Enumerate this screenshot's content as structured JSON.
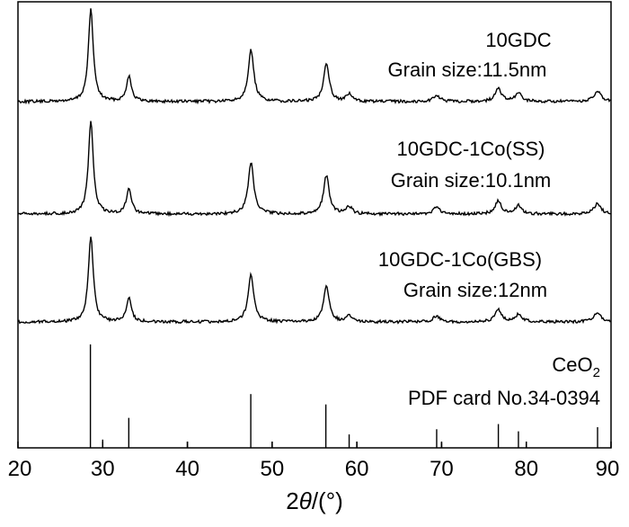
{
  "chart_data": {
    "type": "line",
    "title": "",
    "xlabel_prefix": "2",
    "xlabel_symbol": "θ",
    "xlabel_suffix": "/(°)",
    "ylabel": "",
    "xlim": [
      20,
      90
    ],
    "xticks": [
      20,
      30,
      40,
      50,
      60,
      70,
      80,
      90
    ],
    "y_axis_ticks": false,
    "peaks": [
      {
        "two_theta": 28.6,
        "height": 1.0,
        "width": 0.35
      },
      {
        "two_theta": 33.1,
        "height": 0.28,
        "width": 0.35
      },
      {
        "two_theta": 47.5,
        "height": 0.56,
        "width": 0.4
      },
      {
        "two_theta": 56.4,
        "height": 0.42,
        "width": 0.4
      },
      {
        "two_theta": 59.1,
        "height": 0.08,
        "width": 0.4
      },
      {
        "two_theta": 69.4,
        "height": 0.07,
        "width": 0.45
      },
      {
        "two_theta": 76.7,
        "height": 0.14,
        "width": 0.45
      },
      {
        "two_theta": 79.1,
        "height": 0.09,
        "width": 0.45
      },
      {
        "two_theta": 88.4,
        "height": 0.11,
        "width": 0.5
      }
    ],
    "series": [
      {
        "name": "10GDC",
        "grain_label": "Grain size:11.5nm",
        "grain_size_nm": 11.5
      },
      {
        "name": "10GDC-1Co(SS)",
        "grain_label": "Grain size:10.1nm",
        "grain_size_nm": 10.1
      },
      {
        "name": "10GDC-1Co(GBS)",
        "grain_label": "Grain size:12nm",
        "grain_size_nm": 12
      }
    ],
    "reference": {
      "compound_base": "CeO",
      "compound_subscript": "2",
      "card_label": "PDF card No.34-0394",
      "lines": [
        {
          "two_theta": 28.55,
          "intensity": 100
        },
        {
          "two_theta": 30.0,
          "intensity": 8
        },
        {
          "two_theta": 33.08,
          "intensity": 29
        },
        {
          "two_theta": 40.0,
          "intensity": 6
        },
        {
          "two_theta": 47.48,
          "intensity": 52
        },
        {
          "two_theta": 50.0,
          "intensity": 6
        },
        {
          "two_theta": 56.34,
          "intensity": 42
        },
        {
          "two_theta": 59.09,
          "intensity": 13
        },
        {
          "two_theta": 60.0,
          "intensity": 6
        },
        {
          "two_theta": 69.42,
          "intensity": 18
        },
        {
          "two_theta": 70.0,
          "intensity": 5
        },
        {
          "two_theta": 76.7,
          "intensity": 23
        },
        {
          "two_theta": 79.07,
          "intensity": 16
        },
        {
          "two_theta": 80.0,
          "intensity": 6
        },
        {
          "two_theta": 88.41,
          "intensity": 20
        }
      ]
    }
  }
}
